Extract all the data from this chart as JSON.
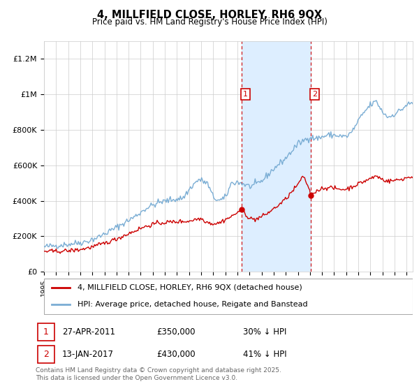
{
  "title": "4, MILLFIELD CLOSE, HORLEY, RH6 9QX",
  "subtitle": "Price paid vs. HM Land Registry's House Price Index (HPI)",
  "ylabel_ticks": [
    "£0",
    "£200K",
    "£400K",
    "£600K",
    "£800K",
    "£1M",
    "£1.2M"
  ],
  "ytick_values": [
    0,
    200000,
    400000,
    600000,
    800000,
    1000000,
    1200000
  ],
  "ylim": [
    0,
    1300000
  ],
  "sale1_date": "27-APR-2011",
  "sale1_price": 350000,
  "sale1_hpi": "30% ↓ HPI",
  "sale2_date": "13-JAN-2017",
  "sale2_price": 430000,
  "sale2_hpi": "41% ↓ HPI",
  "legend_property": "4, MILLFIELD CLOSE, HORLEY, RH6 9QX (detached house)",
  "legend_hpi": "HPI: Average price, detached house, Reigate and Banstead",
  "footnote": "Contains HM Land Registry data © Crown copyright and database right 2025.\nThis data is licensed under the Open Government Licence v3.0.",
  "property_color": "#cc0000",
  "hpi_color": "#7aadd4",
  "shade_color": "#ddeeff",
  "vline_color": "#cc0000",
  "grid_color": "#cccccc",
  "background_color": "#ffffff",
  "sale1_year_dec": 2011.32,
  "sale2_year_dec": 2017.04,
  "xlim_left": 1995.0,
  "xlim_right": 2025.5
}
